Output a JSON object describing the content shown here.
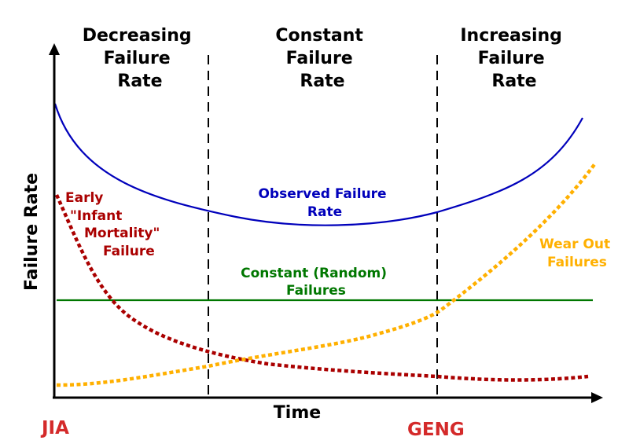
{
  "regions": [
    {
      "lines": [
        "Decreasing",
        "Failure",
        "Rate"
      ]
    },
    {
      "lines": [
        "Constant",
        "Failure",
        "Rate"
      ]
    },
    {
      "lines": [
        "Increasing",
        "Failure",
        "Rate"
      ]
    }
  ],
  "axes": {
    "x_label": "Time",
    "y_label": "Failure Rate"
  },
  "curves": {
    "observed": {
      "lines": [
        "Observed Failure",
        "Rate"
      ],
      "color": "#0000bb"
    },
    "constant": {
      "lines": [
        "Constant (Random)",
        "Failures"
      ],
      "color": "#007700"
    },
    "infant": {
      "lines": [
        "Early",
        "\"Infant",
        "Mortality\"",
        "Failure"
      ],
      "color": "#aa0000"
    },
    "wearout": {
      "lines": [
        "Wear Out",
        "Failures"
      ],
      "color": "#ffb000"
    }
  },
  "watermarks": {
    "left": "JIA",
    "right": "GENG",
    "color": "#d42a2a"
  }
}
